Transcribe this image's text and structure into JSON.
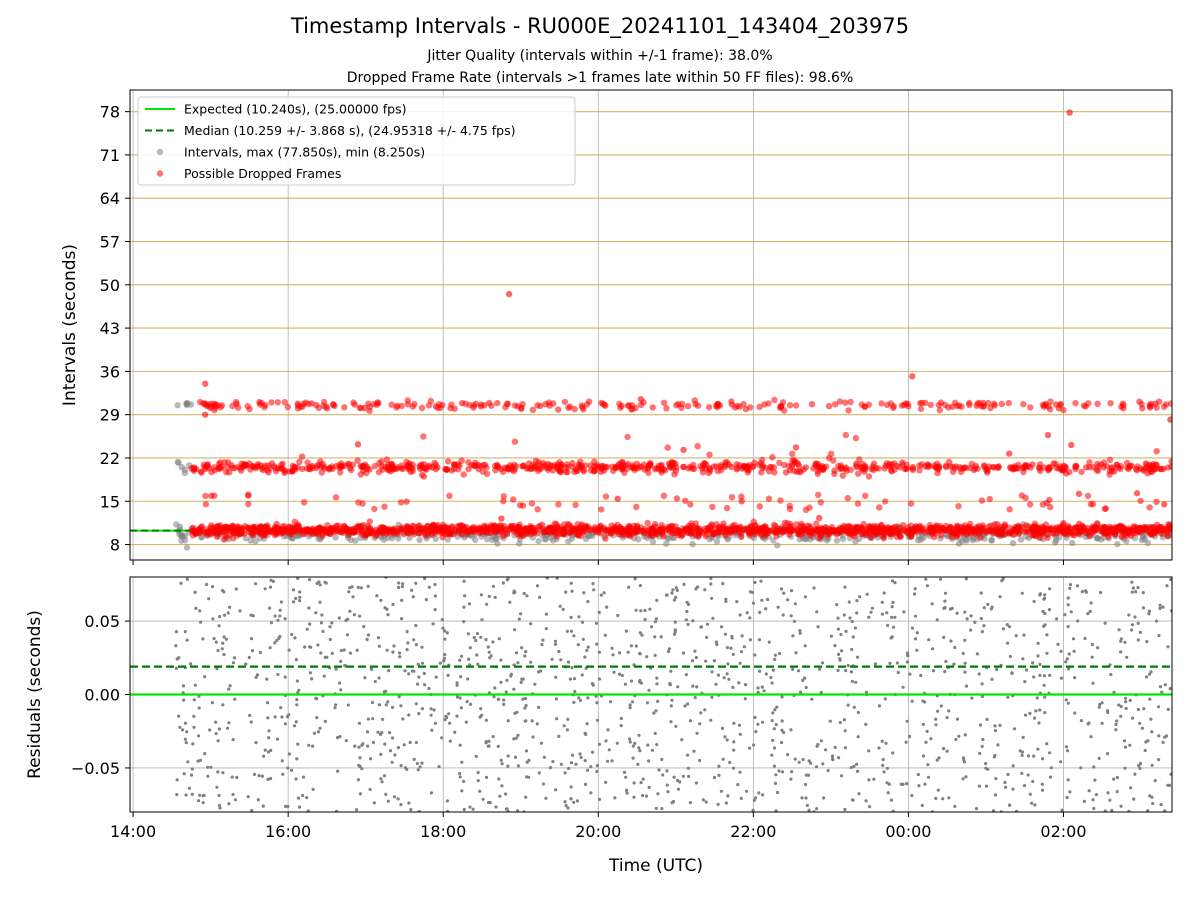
{
  "title": "Timestamp Intervals - RU000E_20241101_143404_203975",
  "subtitle_jitter": "Jitter Quality (intervals within +/-1 frame): 38.0%",
  "subtitle_dropped": "Dropped Frame Rate (intervals >1 frames late within 50 FF files): 98.6%",
  "chart_data": [
    {
      "type": "scatter",
      "panel": "top",
      "ylabel": "Intervals (seconds)",
      "xlabel": "",
      "y_ticks": [
        8,
        15,
        22,
        29,
        36,
        43,
        50,
        57,
        64,
        71,
        78
      ],
      "ylim": [
        5.5,
        81.5
      ],
      "x_range_hours": [
        13.96,
        27.4
      ],
      "x_tick_labels": [
        "14:00",
        "16:00",
        "18:00",
        "20:00",
        "22:00",
        "00:00",
        "02:00"
      ],
      "x_tick_hours": [
        14,
        16,
        18,
        20,
        22,
        24,
        26
      ],
      "hlines_color": "#d4b46a",
      "legend_position": "top-left",
      "legend": [
        {
          "label": "Expected (10.240s), (25.00000 fps)",
          "color": "#00e600",
          "style": "solid-line"
        },
        {
          "label": "Median (10.259 +/- 3.868 s), (24.95318 +/- 4.75 fps)",
          "color": "#007a00",
          "style": "dashed-line"
        },
        {
          "label": "Intervals, max (77.850s), min (8.250s)",
          "color": "#808080",
          "style": "marker"
        },
        {
          "label": "Possible Dropped Frames",
          "color": "#ff0000",
          "style": "marker"
        }
      ],
      "series": [
        {
          "name": "Expected",
          "value": 10.24,
          "color": "#00e600"
        },
        {
          "name": "Median",
          "value": 10.259,
          "color": "#007a00"
        },
        {
          "name": "Intervals",
          "color": "#808080",
          "clusters": [
            {
              "x_start": 14.55,
              "x_end": 27.4,
              "y_center": 9.6,
              "spread": 0.6,
              "count": 520
            },
            {
              "x_start": 14.55,
              "x_end": 14.75,
              "y_center": 20.7,
              "spread": 0.4,
              "count": 6
            },
            {
              "x_start": 14.55,
              "x_end": 14.75,
              "y_center": 30.6,
              "spread": 0.2,
              "count": 6
            }
          ]
        },
        {
          "name": "Possible Dropped Frames",
          "color": "#ff0000",
          "clusters": [
            {
              "x_start": 14.75,
              "x_end": 27.4,
              "y_center": 10.3,
              "spread": 0.45,
              "count": 1600
            },
            {
              "x_start": 14.75,
              "x_end": 27.4,
              "y_center": 20.5,
              "spread": 0.45,
              "count": 700
            },
            {
              "x_start": 14.75,
              "x_end": 27.4,
              "y_center": 30.5,
              "spread": 0.35,
              "count": 260
            },
            {
              "x_start": 14.75,
              "x_end": 27.4,
              "y_center": 13.5,
              "spread": 1.3,
              "count": 70
            },
            {
              "x_start": 14.75,
              "x_end": 27.4,
              "y_center": 23.5,
              "spread": 1.0,
              "count": 14
            }
          ],
          "outliers": [
            {
              "x": 18.85,
              "y": 48.5
            },
            {
              "x": 26.08,
              "y": 77.85
            },
            {
              "x": 24.05,
              "y": 35.2
            },
            {
              "x": 14.93,
              "y": 34.0
            },
            {
              "x": 14.93,
              "y": 29.0
            },
            {
              "x": 20.55,
              "y": 31.5
            },
            {
              "x": 16.9,
              "y": 24.2
            },
            {
              "x": 21.1,
              "y": 23.3
            },
            {
              "x": 22.55,
              "y": 23.7
            },
            {
              "x": 25.3,
              "y": 22.7
            },
            {
              "x": 25.8,
              "y": 25.7
            },
            {
              "x": 26.1,
              "y": 24.1
            },
            {
              "x": 26.2,
              "y": 16.2
            },
            {
              "x": 26.95,
              "y": 16.3
            },
            {
              "x": 27.38,
              "y": 28.2
            },
            {
              "x": 27.3,
              "y": 14.5
            },
            {
              "x": 21.85,
              "y": 15.0
            },
            {
              "x": 20.25,
              "y": 15.4
            },
            {
              "x": 22.85,
              "y": 12.3
            },
            {
              "x": 18.75,
              "y": 12.2
            }
          ]
        }
      ]
    },
    {
      "type": "scatter",
      "panel": "bottom",
      "ylabel": "Residuals (seconds)",
      "xlabel": "Time (UTC)",
      "y_ticks": [
        -0.05,
        0.0,
        0.05
      ],
      "y_tick_labels": [
        "−0.05",
        "0.00",
        "0.05"
      ],
      "ylim": [
        -0.08,
        0.08
      ],
      "x_range_hours": [
        13.96,
        27.4
      ],
      "x_tick_labels": [
        "14:00",
        "16:00",
        "18:00",
        "20:00",
        "22:00",
        "00:00",
        "02:00"
      ],
      "x_tick_hours": [
        14,
        16,
        18,
        20,
        22,
        24,
        26
      ],
      "series": [
        {
          "name": "Expected",
          "value": 0.0,
          "color": "#00e600"
        },
        {
          "name": "Median",
          "value": 0.019,
          "color": "#007a00"
        },
        {
          "name": "Residuals",
          "color": "#808080",
          "x_start": 14.55,
          "x_end": 27.4,
          "count": 1500,
          "range": [
            -0.08,
            0.08
          ]
        }
      ]
    }
  ]
}
